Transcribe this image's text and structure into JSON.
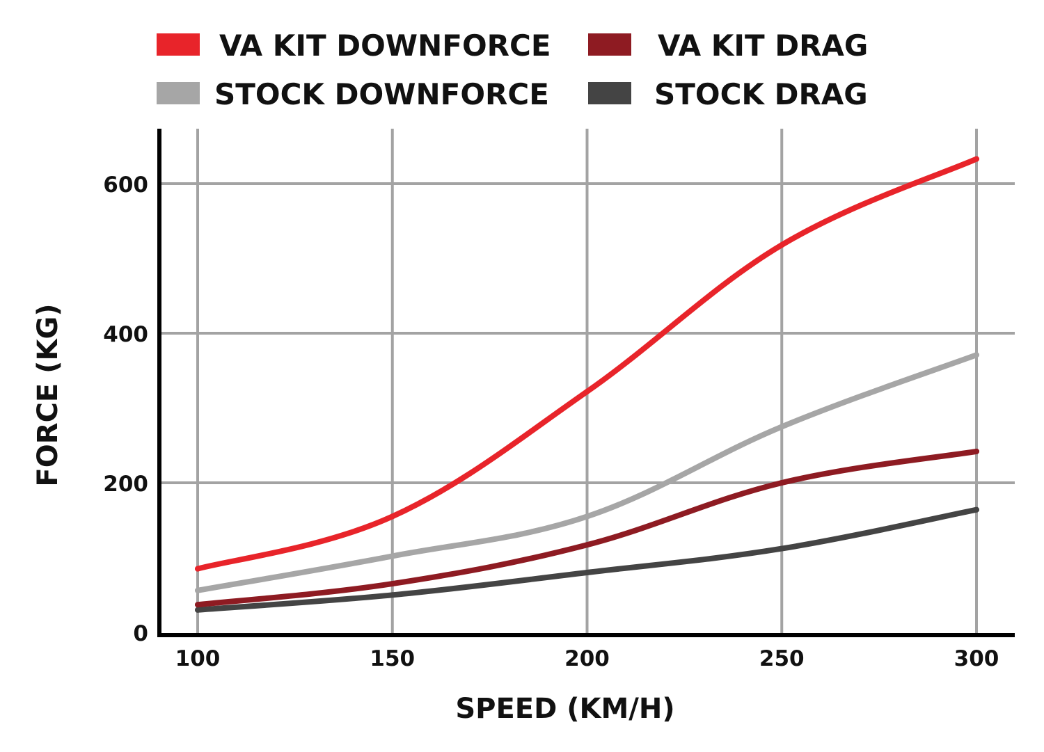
{
  "chart_data": {
    "type": "line",
    "title": "",
    "xlabel": "SPEED (KM/H)",
    "ylabel": "FORCE (KG)",
    "x": [
      100,
      150,
      200,
      250,
      300
    ],
    "xlim": [
      90,
      310
    ],
    "ylim": [
      0,
      670
    ],
    "xticks": [
      "100",
      "150",
      "200",
      "250",
      "300"
    ],
    "yticks": [
      "0",
      "200",
      "400",
      "600"
    ],
    "grid": true,
    "legend_position": "top",
    "series": [
      {
        "name": "VA KIT DOWNFORCE",
        "color": "#e8242a",
        "values": [
          85,
          155,
          322,
          518,
          633
        ]
      },
      {
        "name": "VA KIT DRAG",
        "color": "#8e1b22",
        "values": [
          37,
          65,
          117,
          200,
          242
        ]
      },
      {
        "name": "STOCK DOWNFORCE",
        "color": "#a6a6a6",
        "values": [
          56,
          102,
          155,
          275,
          371
        ]
      },
      {
        "name": "STOCK DRAG",
        "color": "#444444",
        "values": [
          30,
          50,
          80,
          112,
          164
        ]
      }
    ]
  }
}
